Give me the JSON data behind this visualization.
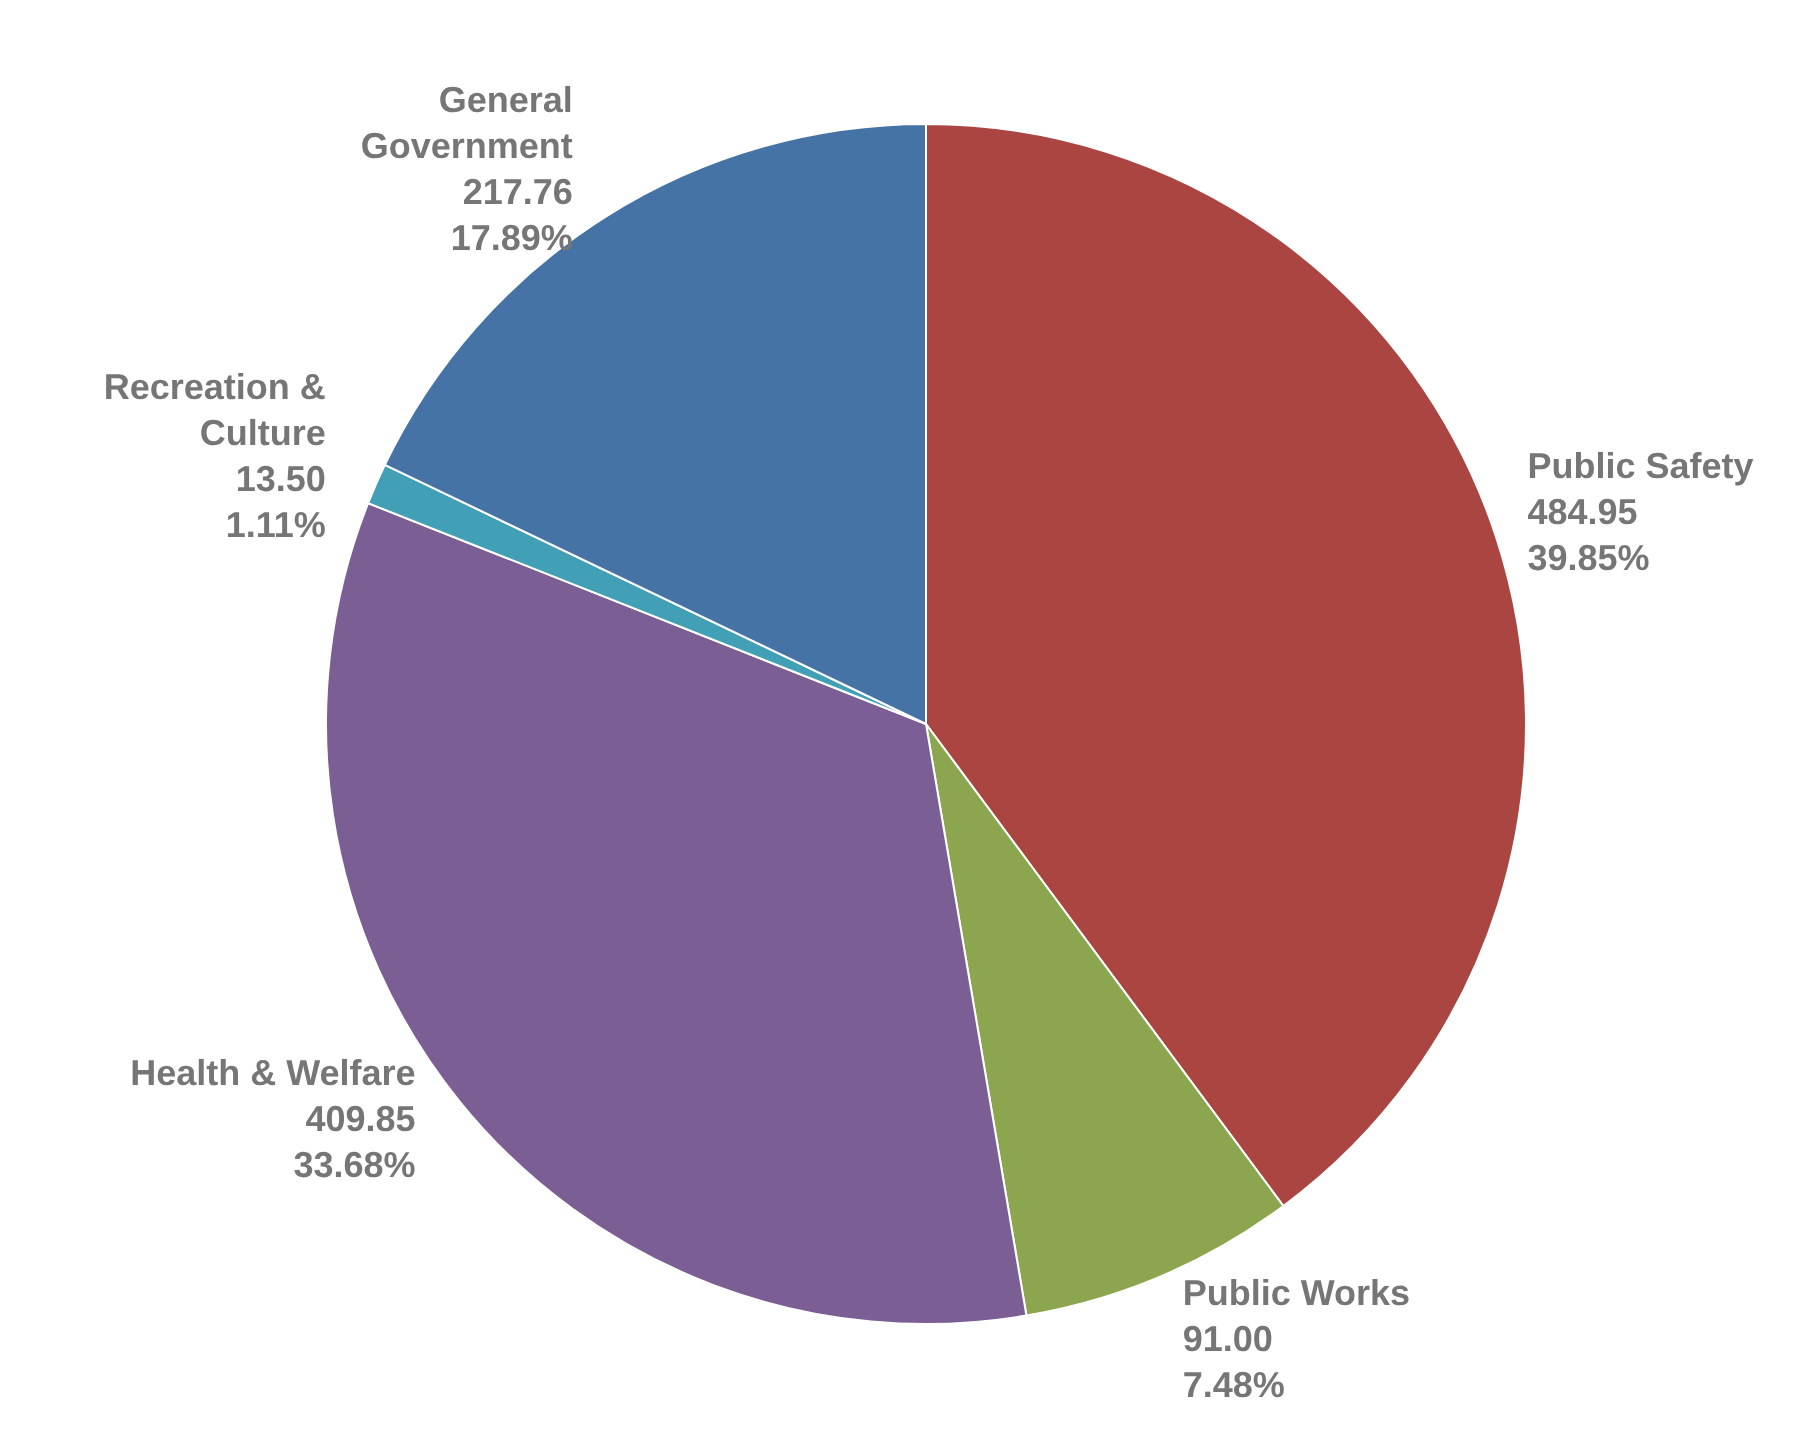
{
  "chart_data": {
    "type": "pie",
    "categories": [
      "Public Safety",
      "Public Works",
      "Health & Welfare",
      "Recreation & Culture",
      "General Government"
    ],
    "values": [
      484.95,
      91.0,
      409.85,
      13.5,
      217.76
    ],
    "colors": [
      "#ab4542",
      "#8ba64e",
      "#7a5e94",
      "#41a0b5",
      "#4673a6"
    ],
    "value_labels": [
      "484.95\n39.85%",
      "91.00\n7.48%",
      "409.85\n33.68%",
      "13.50\n1.11%",
      "217.76\n17.89%"
    ],
    "legend": false
  }
}
